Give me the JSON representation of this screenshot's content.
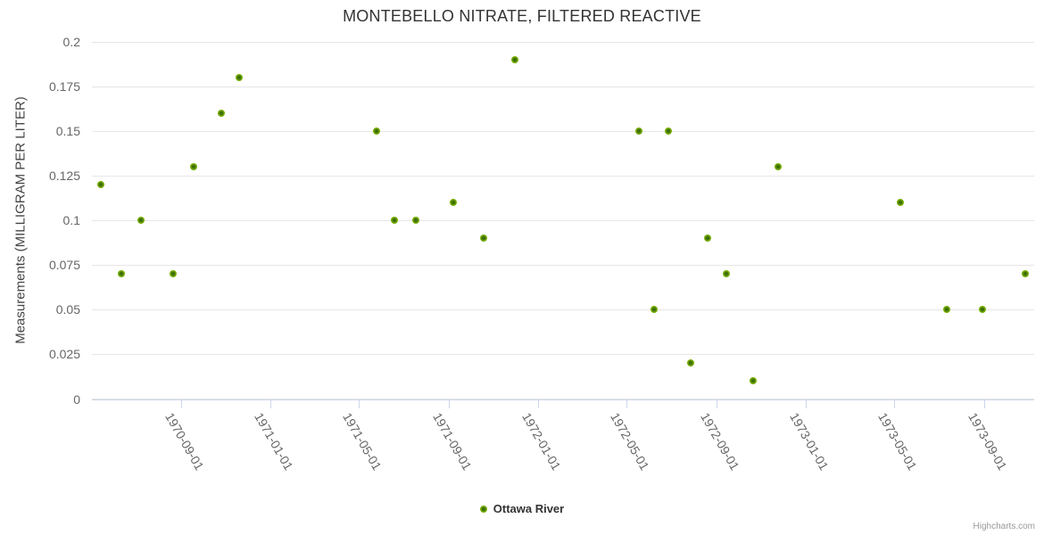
{
  "page": {
    "credits_label": "Highcharts.com"
  },
  "legend": {
    "items": [
      {
        "label": "Ottawa River",
        "color": "#7db405"
      }
    ]
  },
  "colors": {
    "series_green": "#7db405",
    "series_green_core": "#3d7004",
    "grid_line": "#e6e6e6",
    "axis_line": "#ccd6eb",
    "title_text": "#333333",
    "axis_label_text": "#666666",
    "axis_title_text": "#444444",
    "credits_text": "#999999",
    "background": "#ffffff"
  },
  "chart_data": {
    "type": "scatter",
    "title": "MONTEBELLO NITRATE, FILTERED REACTIVE",
    "xlabel": "",
    "ylabel": "Measurements (MILLIGRAM PER LITER)",
    "ylim": [
      0,
      0.2
    ],
    "grid": true,
    "legend_position": "bottom-center",
    "y_ticks": [
      0,
      0.025,
      0.05,
      0.075,
      0.1,
      0.125,
      0.15,
      0.175,
      0.2
    ],
    "y_tick_labels": [
      "0",
      "0.025",
      "0.05",
      "0.075",
      "0.1",
      "0.125",
      "0.15",
      "0.175",
      "0.2"
    ],
    "x_tick_labels": [
      "1970-09-01",
      "1971-01-01",
      "1971-05-01",
      "1971-09-01",
      "1972-01-01",
      "1972-05-01",
      "1972-09-01",
      "1973-01-01",
      "1973-05-01",
      "1973-09-01"
    ],
    "series": [
      {
        "name": "Ottawa River",
        "color": "#7db405",
        "points": [
          {
            "date": "1970-05-15",
            "value": 0.12
          },
          {
            "date": "1970-06-11",
            "value": 0.07
          },
          {
            "date": "1970-07-08",
            "value": 0.1
          },
          {
            "date": "1970-08-21",
            "value": 0.07
          },
          {
            "date": "1970-09-18",
            "value": 0.13
          },
          {
            "date": "1970-10-26",
            "value": 0.16
          },
          {
            "date": "1970-11-19",
            "value": 0.18
          },
          {
            "date": "1971-05-26",
            "value": 0.15
          },
          {
            "date": "1971-06-19",
            "value": 0.1
          },
          {
            "date": "1971-07-18",
            "value": 0.1
          },
          {
            "date": "1971-09-08",
            "value": 0.11
          },
          {
            "date": "1971-10-19",
            "value": 0.09
          },
          {
            "date": "1971-11-30",
            "value": 0.19
          },
          {
            "date": "1972-05-18",
            "value": 0.15
          },
          {
            "date": "1972-06-08",
            "value": 0.05
          },
          {
            "date": "1972-06-27",
            "value": 0.15
          },
          {
            "date": "1972-07-27",
            "value": 0.02
          },
          {
            "date": "1972-08-19",
            "value": 0.09
          },
          {
            "date": "1972-09-14",
            "value": 0.07
          },
          {
            "date": "1972-10-20",
            "value": 0.01
          },
          {
            "date": "1972-11-24",
            "value": 0.13
          },
          {
            "date": "1973-05-10",
            "value": 0.11
          },
          {
            "date": "1973-07-12",
            "value": 0.05
          },
          {
            "date": "1973-08-30",
            "value": 0.05
          },
          {
            "date": "1973-10-27",
            "value": 0.07
          }
        ]
      }
    ]
  }
}
